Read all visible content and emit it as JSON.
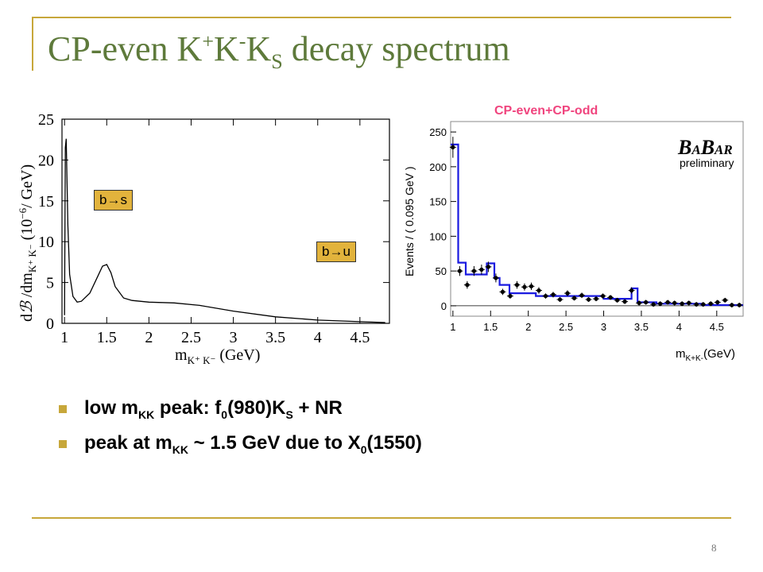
{
  "slide": {
    "title_parts": [
      "CP-even K",
      "+",
      "K",
      "-",
      "K",
      "S",
      " decay spectrum"
    ],
    "page_number": "8",
    "accent_color": "#c7a73a",
    "title_color": "#5e7a3b"
  },
  "left_plot": {
    "ylabel_parts": [
      "d",
      "ℬ",
      " /dm",
      "K⁺ K⁻",
      "  (10",
      "−6",
      "/ GeV)"
    ],
    "xlabel_parts": [
      "m",
      "K⁺ K⁻",
      "  (GeV)"
    ],
    "x_ticks": [
      "1",
      "1.5",
      "2",
      "2.5",
      "3",
      "3.5",
      "4",
      "4.5"
    ],
    "y_ticks": [
      "0",
      "5",
      "10",
      "15",
      "20",
      "25"
    ],
    "tag_bs": "b→s",
    "tag_bu": "b→u"
  },
  "right_plot": {
    "label": "CP-even+CP-odd",
    "label_color": "#f0447e",
    "ylabel": "Events / ( 0.095 GeV )",
    "xlabel_parts": [
      "m",
      "K+K-",
      "(GeV)"
    ],
    "x_ticks": [
      "1",
      "1.5",
      "2",
      "2.5",
      "3",
      "3.5",
      "4",
      "4.5"
    ],
    "y_ticks": [
      "0",
      "50",
      "100",
      "150",
      "200",
      "250"
    ],
    "logo_parts": [
      "B",
      "A",
      "B",
      "AR"
    ],
    "logo_sub": "preliminary",
    "fit_color": "#1a1ae0"
  },
  "chart_data": [
    {
      "type": "line",
      "x": [
        1.0,
        1.01,
        1.02,
        1.04,
        1.06,
        1.1,
        1.15,
        1.2,
        1.3,
        1.4,
        1.45,
        1.5,
        1.55,
        1.6,
        1.7,
        1.8,
        2.0,
        2.3,
        2.6,
        3.0,
        3.5,
        4.0,
        4.5,
        4.8
      ],
      "y": [
        1.0,
        21.5,
        22.6,
        12.0,
        6.0,
        3.3,
        2.6,
        2.7,
        3.7,
        5.9,
        7.0,
        7.2,
        6.2,
        4.5,
        3.1,
        2.8,
        2.6,
        2.5,
        2.2,
        1.5,
        0.8,
        0.4,
        0.2,
        0.1
      ],
      "xlim": [
        0.97,
        4.85
      ],
      "ylim": [
        0,
        25
      ]
    },
    {
      "type": "scatter",
      "x": [
        1.0,
        1.09,
        1.19,
        1.28,
        1.38,
        1.47,
        1.57,
        1.66,
        1.76,
        1.85,
        1.95,
        2.04,
        2.14,
        2.23,
        2.33,
        2.42,
        2.52,
        2.61,
        2.71,
        2.8,
        2.9,
        2.99,
        3.09,
        3.18,
        3.28,
        3.37,
        3.47,
        3.56,
        3.66,
        3.75,
        3.85,
        3.94,
        4.04,
        4.13,
        4.23,
        4.32,
        4.42,
        4.51,
        4.61,
        4.7,
        4.8
      ],
      "y": [
        228,
        50,
        30,
        50,
        52,
        56,
        40,
        20,
        14,
        30,
        27,
        28,
        22,
        14,
        16,
        9,
        18,
        11,
        15,
        9,
        10,
        14,
        12,
        8,
        6,
        22,
        4,
        5,
        2,
        3,
        5,
        4,
        3,
        4,
        2,
        2,
        3,
        5,
        8,
        1,
        1
      ],
      "xlim": [
        0.97,
        4.85
      ],
      "ylim": [
        -15,
        265
      ]
    },
    {
      "type": "line",
      "x": [
        0.97,
        1.07,
        1.07,
        1.17,
        1.17,
        1.45,
        1.45,
        1.55,
        1.55,
        1.62,
        1.62,
        1.75,
        1.75,
        2.1,
        2.1,
        3.0,
        3.0,
        3.37,
        3.37,
        3.45,
        3.45,
        3.7,
        3.7,
        4.3,
        4.3,
        4.85
      ],
      "y": [
        232,
        232,
        62,
        62,
        45,
        45,
        61,
        61,
        40,
        40,
        30,
        30,
        18,
        18,
        14,
        14,
        10,
        10,
        25,
        25,
        5,
        5,
        3,
        3,
        1,
        1
      ],
      "xlim": [
        0.97,
        4.85
      ],
      "ylim": [
        -15,
        265
      ]
    }
  ],
  "bullets": [
    {
      "parts": [
        "low m",
        "KK",
        " peak: f",
        "0",
        "(980)K",
        "S",
        " + NR"
      ]
    },
    {
      "parts": [
        "peak at m",
        "KK",
        " ~ 1.5 GeV due to X",
        "0",
        "(1550)"
      ]
    }
  ]
}
